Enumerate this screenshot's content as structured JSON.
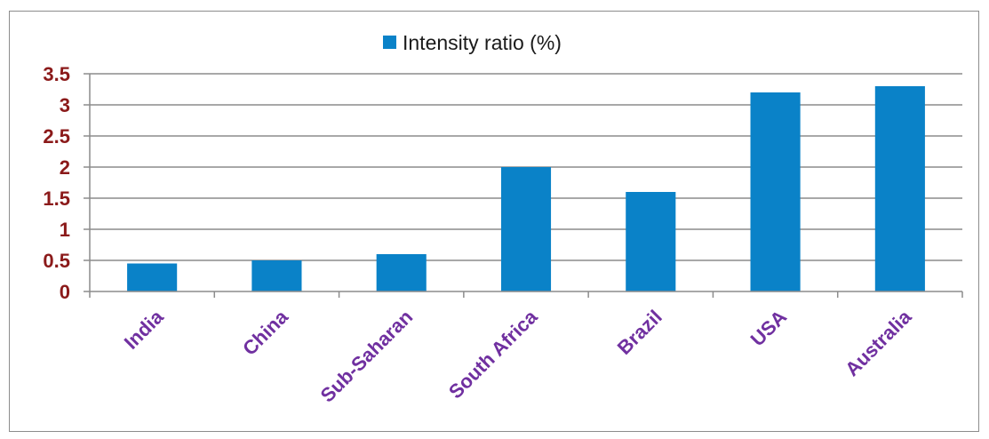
{
  "chart_data": {
    "type": "bar",
    "categories": [
      "India",
      "China",
      "Sub-Saharan",
      "South Africa",
      "Brazil",
      "USA",
      "Australia"
    ],
    "series": [
      {
        "name": "Intensity ratio (%)",
        "values": [
          0.45,
          0.5,
          0.6,
          2.0,
          1.6,
          3.2,
          3.3
        ]
      }
    ],
    "title": "",
    "xlabel": "",
    "ylabel": "",
    "ylim": [
      0,
      3.5
    ],
    "yticks": [
      "0",
      "0.5",
      "1",
      "1.5",
      "2",
      "2.5",
      "3",
      "3.5"
    ],
    "grid": true,
    "legend_position": "top",
    "colors": {
      "bar": "#0a82c8",
      "y_tick_label": "#8b1a1a",
      "x_tick_label": "#7030a0",
      "gridline": "#8c8c8c"
    }
  }
}
